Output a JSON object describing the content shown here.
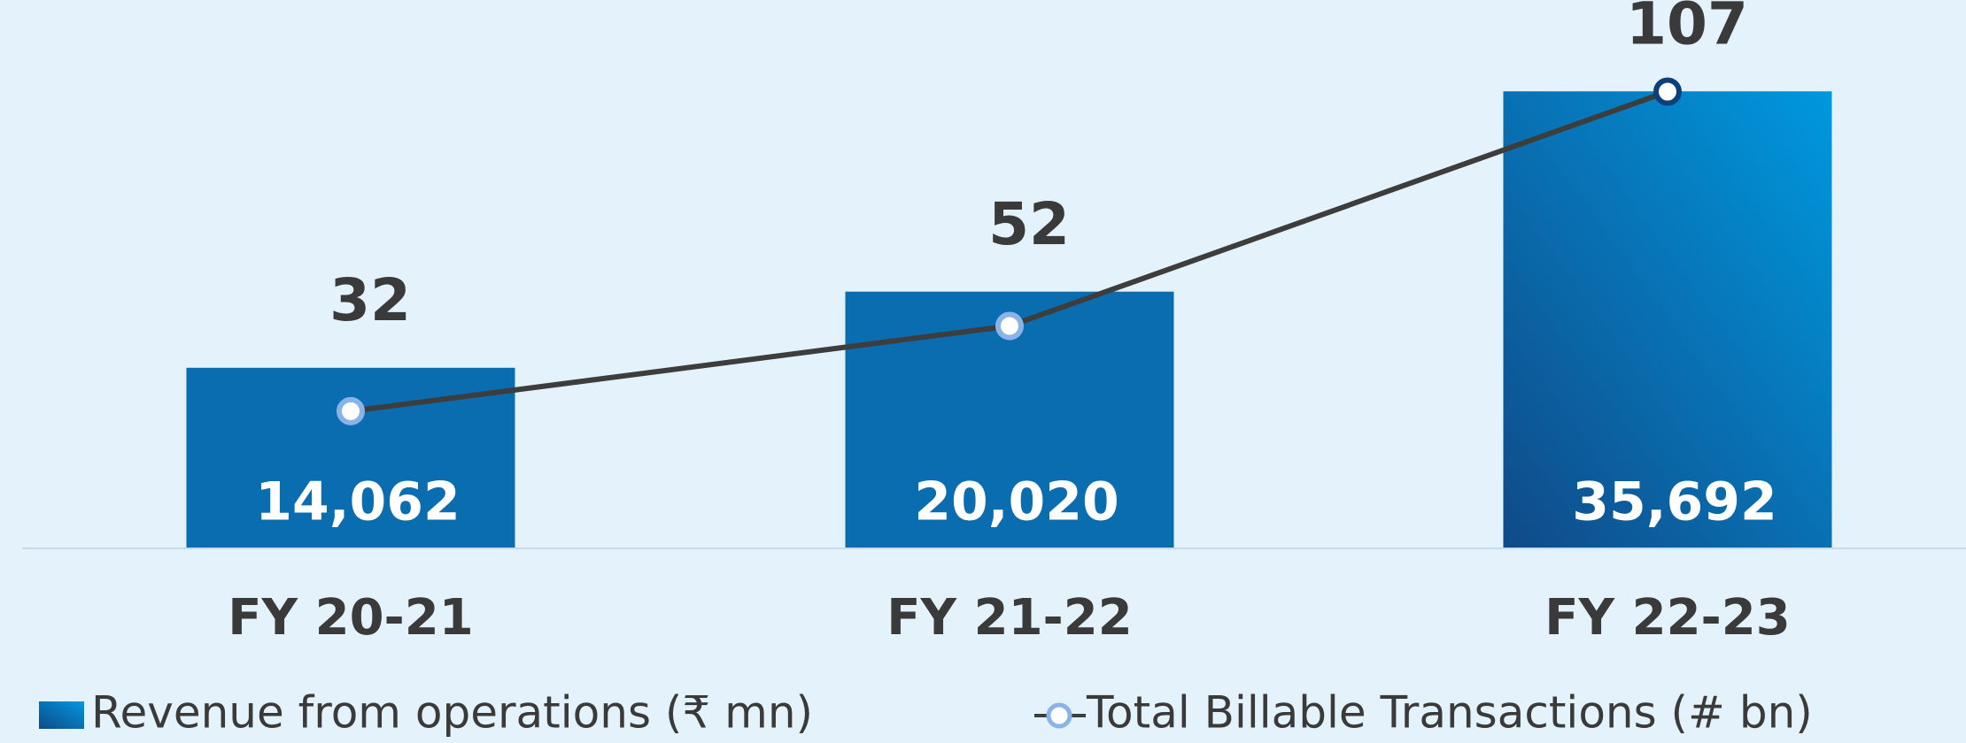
{
  "chart_data": {
    "type": "bar_line",
    "categories": [
      "FY 20-21",
      "FY 21-22",
      "FY 22-23"
    ],
    "series": [
      {
        "name": "Revenue from operations (₹ mn)",
        "type": "bar",
        "color": "#0a6db0",
        "values": [
          14062,
          20020,
          35692
        ],
        "value_labels": [
          "14,062",
          "20,020",
          "35,692"
        ]
      },
      {
        "name": "Total Billable Transactions (# bn)",
        "type": "line",
        "axis": "y2",
        "color": "#3d3d3d",
        "marker_edge_colors": [
          "#8ab4e8",
          "#8ab4e8",
          "#0d3f7a"
        ],
        "values": [
          32,
          52,
          107
        ]
      }
    ],
    "ylim": [
      0,
      40000
    ],
    "y2lim": [
      0,
      120
    ]
  }
}
